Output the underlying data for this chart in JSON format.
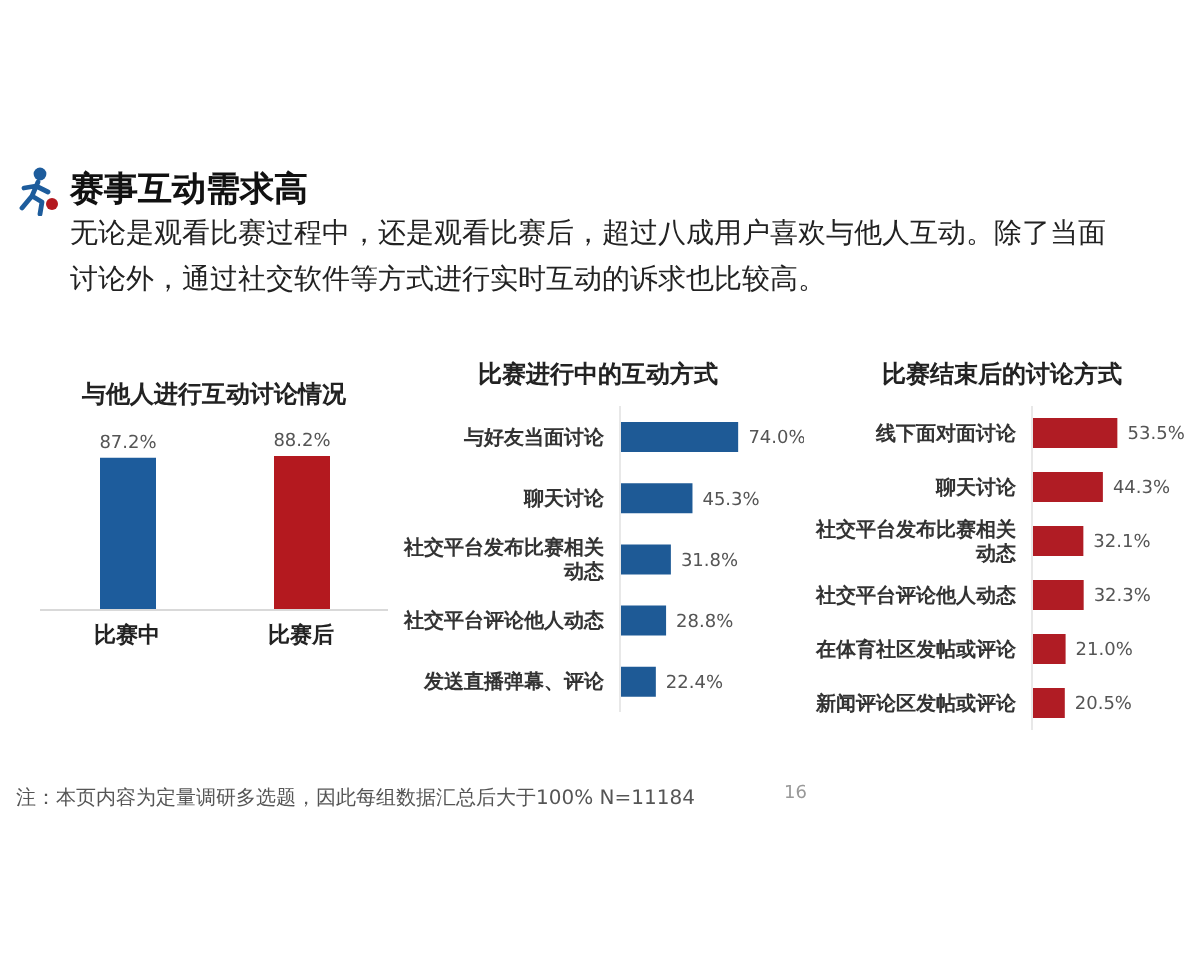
{
  "chart_data": [
    {
      "type": "other",
      "title": "赛事互动需求高",
      "subtitle": "无论是观看比赛过程中，还是观看比赛后，超过八成用户喜欢与他人互动。除了当面讨论外，通过社交软件等方式进行实时互动的诉求也比较高。"
    },
    {
      "type": "bar",
      "title": "与他人进行互动讨论情况",
      "categories": [
        "比赛中",
        "比赛后"
      ],
      "values": [
        87.2,
        88.2
      ],
      "colors": [
        "#1d5c9c",
        "#b4191f"
      ],
      "value_labels": [
        "87.2%",
        "88.2%"
      ]
    },
    {
      "type": "bar",
      "orientation": "horizontal",
      "title": "比赛进行中的互动方式",
      "categories": [
        "与好友当面讨论",
        "聊天讨论",
        "社交平台发布比赛相关动态",
        "社交平台评论他人动态",
        "发送直播弹幕、评论"
      ],
      "values": [
        74.0,
        45.3,
        31.8,
        28.8,
        22.4
      ],
      "color": "#1e5a96",
      "value_labels": [
        "74.0%",
        "45.3%",
        "31.8%",
        "28.8%",
        "22.4%"
      ]
    },
    {
      "type": "bar",
      "orientation": "horizontal",
      "title": "比赛结束后的讨论方式",
      "categories": [
        "线下面对面讨论",
        "聊天讨论",
        "社交平台发布比赛相关动态",
        "社交平台评论他人动态",
        "在体育社区发帖或评论",
        "新闻评论区发帖或评论"
      ],
      "values": [
        53.5,
        44.3,
        32.1,
        32.3,
        21.0,
        20.5
      ],
      "color": "#b01c24",
      "value_labels": [
        "53.5%",
        "44.3%",
        "32.1%",
        "32.3%",
        "21.0%",
        "20.5%"
      ]
    },
    {
      "type": "other",
      "annotations": [
        "注：本页内容为定量调研多选题，因此每组数据汇总后大于100%  N=11184",
        "16"
      ]
    }
  ]
}
